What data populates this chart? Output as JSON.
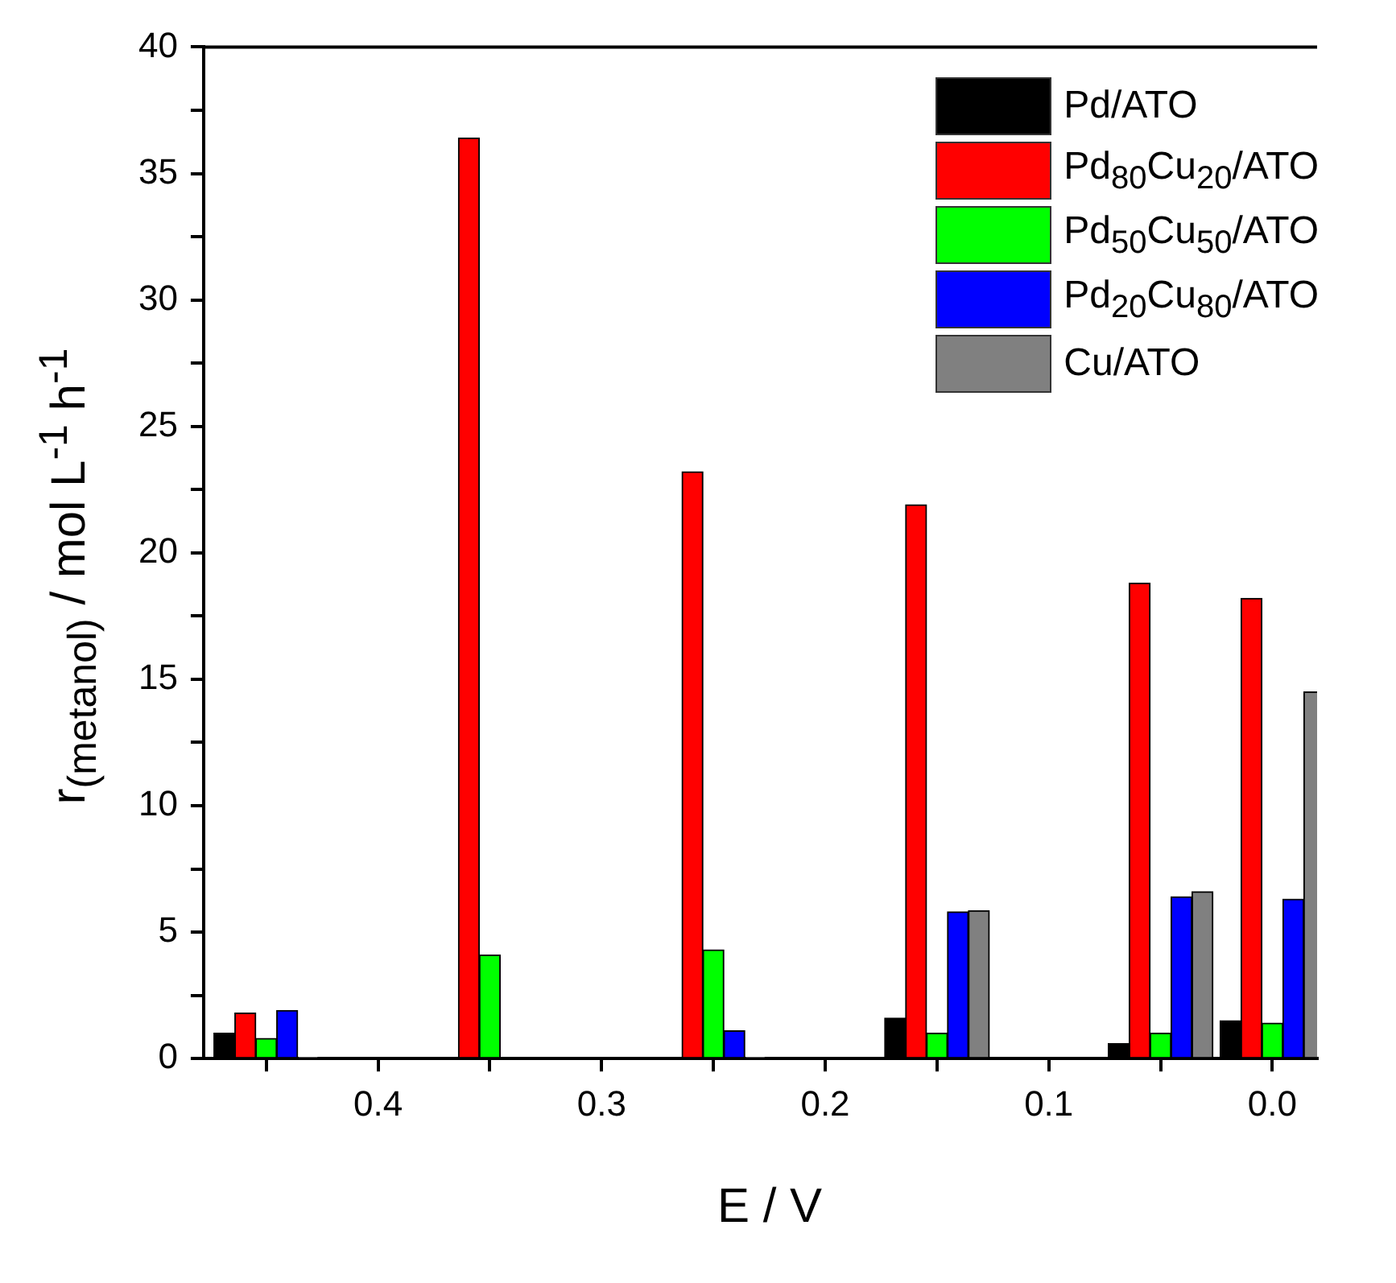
{
  "chart_data": {
    "type": "bar",
    "xlabel": "E / V",
    "ylabel": "r$_{(metanol)}$ / mol L$^{-1}$ h$^{-1}$",
    "x": [
      0.45,
      0.35,
      0.25,
      0.15,
      0.05,
      0.0
    ],
    "series": [
      {
        "name": "Pd/ATO",
        "color": "#000000",
        "values": [
          1.0,
          0,
          0,
          1.6,
          0.6,
          1.5
        ]
      },
      {
        "name": "Pd$_{80}$Cu$_{20}$/ATO",
        "color": "#ff0000",
        "values": [
          1.8,
          36.4,
          23.2,
          21.9,
          18.8,
          18.2
        ]
      },
      {
        "name": "Pd$_{50}$Cu$_{50}$/ATO",
        "color": "#00ff00",
        "values": [
          0.8,
          4.1,
          4.3,
          1.0,
          1.0,
          1.4
        ]
      },
      {
        "name": "Pd$_{20}$Cu$_{80}$/ATO",
        "color": "#0000ff",
        "values": [
          1.9,
          0,
          1.1,
          5.8,
          6.4,
          6.3
        ]
      },
      {
        "name": "Cu/ATO",
        "color": "#808080",
        "values": [
          0.05,
          0,
          0.05,
          5.85,
          6.6,
          14.5
        ]
      }
    ],
    "xlim": [
      0.478,
      -0.02
    ],
    "xticks": [
      {
        "value": 0.45,
        "label": null
      },
      0.4,
      {
        "value": 0.35,
        "label": null
      },
      0.3,
      {
        "value": 0.25,
        "label": null
      },
      0.2,
      {
        "value": 0.15,
        "label": null
      },
      0.1,
      {
        "value": 0.05,
        "label": null
      },
      {
        "value": 0,
        "label": "0.0"
      }
    ],
    "ylim": [
      0,
      40
    ],
    "yticks": [
      0,
      {
        "value": 2.5,
        "label": null
      },
      5,
      {
        "value": 7.5,
        "label": null
      },
      10,
      {
        "value": 12.5,
        "label": null
      },
      15,
      {
        "value": 17.5,
        "label": null
      },
      20,
      {
        "value": 22.5,
        "label": null
      },
      25,
      {
        "value": 27.5,
        "label": null
      },
      30,
      {
        "value": 32.5,
        "label": null
      },
      35,
      {
        "value": 37.5,
        "label": null
      },
      40
    ],
    "grid": false,
    "legend": "top right"
  }
}
